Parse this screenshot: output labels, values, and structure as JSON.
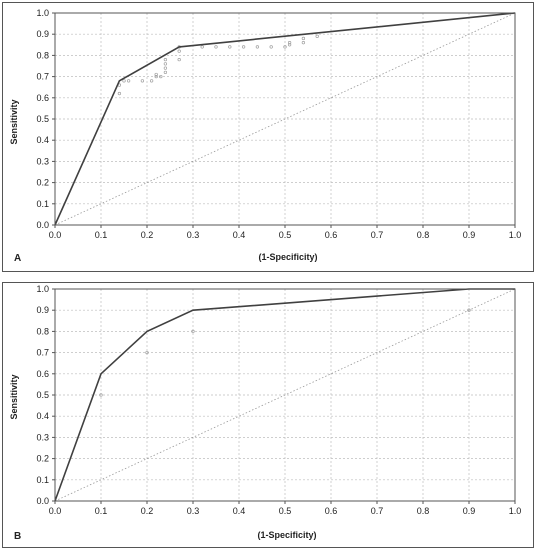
{
  "chart_data": [
    {
      "type": "line",
      "panel_label": "A",
      "xlabel": "(1-Specificity)",
      "ylabel": "Sensitivity",
      "xlim": [
        0,
        1
      ],
      "ylim": [
        0,
        1
      ],
      "x_ticks": [
        "0.0",
        "0.1",
        "0.2",
        "0.3",
        "0.4",
        "0.5",
        "0.6",
        "0.7",
        "0.8",
        "0.9",
        "1.0"
      ],
      "y_ticks": [
        "0.0",
        "0.1",
        "0.2",
        "0.3",
        "0.4",
        "0.5",
        "0.6",
        "0.7",
        "0.8",
        "0.9",
        "1.0"
      ],
      "grid": true,
      "series": [
        {
          "x": [
            0,
            0.14,
            0.27,
            1.0
          ],
          "y": [
            0,
            0.68,
            0.84,
            1.0
          ]
        }
      ],
      "reference_line": {
        "x": [
          0,
          1
        ],
        "y": [
          0,
          1
        ]
      },
      "points": {
        "x": [
          0.14,
          0.14,
          0.15,
          0.16,
          0.19,
          0.21,
          0.22,
          0.22,
          0.23,
          0.24,
          0.24,
          0.24,
          0.24,
          0.27,
          0.27,
          0.27,
          0.32,
          0.35,
          0.38,
          0.41,
          0.44,
          0.47,
          0.5,
          0.51,
          0.51,
          0.54,
          0.54,
          0.57
        ],
        "y": [
          0.62,
          0.66,
          0.68,
          0.68,
          0.68,
          0.68,
          0.7,
          0.71,
          0.7,
          0.72,
          0.74,
          0.76,
          0.78,
          0.78,
          0.82,
          0.84,
          0.84,
          0.84,
          0.84,
          0.84,
          0.84,
          0.84,
          0.84,
          0.85,
          0.86,
          0.86,
          0.88,
          0.89
        ]
      }
    },
    {
      "type": "line",
      "panel_label": "B",
      "xlabel": "(1-Specificity)",
      "ylabel": "Sensitivity",
      "xlim": [
        0,
        1
      ],
      "ylim": [
        0,
        1
      ],
      "x_ticks": [
        "0.0",
        "0.1",
        "0.2",
        "0.3",
        "0.4",
        "0.5",
        "0.6",
        "0.7",
        "0.8",
        "0.9",
        "1.0"
      ],
      "y_ticks": [
        "0.0",
        "0.1",
        "0.2",
        "0.3",
        "0.4",
        "0.5",
        "0.6",
        "0.7",
        "0.8",
        "0.9",
        "1.0"
      ],
      "grid": true,
      "series": [
        {
          "x": [
            0,
            0.1,
            0.2,
            0.3,
            0.9,
            1.0
          ],
          "y": [
            0,
            0.6,
            0.8,
            0.9,
            1.0,
            1.0
          ]
        }
      ],
      "reference_line": {
        "x": [
          0,
          1
        ],
        "y": [
          0,
          1
        ]
      },
      "points": {
        "x": [
          0.1,
          0.2,
          0.3,
          0.9
        ],
        "y": [
          0.5,
          0.7,
          0.8,
          0.9
        ]
      }
    }
  ],
  "colors": {
    "curve": "#404040",
    "reference": "#9a9a9a",
    "grid": "#bdbdbd",
    "points": "#a0a0a0",
    "frame": "#555555"
  }
}
